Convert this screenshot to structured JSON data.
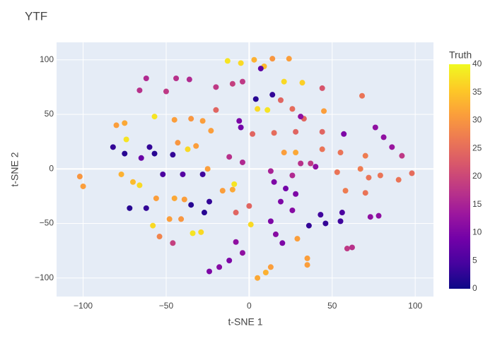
{
  "chart_data": {
    "type": "scatter",
    "title": "YTF",
    "x_label": "t-SNE 1",
    "y_label": "t-SNE 2",
    "colorbar_title": "Truth",
    "x": [
      -13,
      -5,
      3,
      9,
      14,
      24,
      7,
      -62,
      -44,
      -36,
      -66,
      -50,
      -20,
      -10,
      -4,
      21,
      32,
      44,
      4,
      14,
      19,
      26,
      33,
      5,
      11,
      45,
      31,
      68,
      -57,
      -45,
      -35,
      -28,
      -20,
      -80,
      -75,
      -6,
      -5,
      -23,
      2,
      15,
      28,
      44,
      21,
      28,
      44,
      55,
      70,
      57,
      76,
      81,
      86,
      92,
      -82,
      -75,
      -65,
      -60,
      -74,
      -57,
      -46,
      -43,
      -32,
      -37,
      -12,
      -4,
      -102,
      -100,
      -77,
      -70,
      -66,
      -52,
      -40,
      -28,
      -25,
      13,
      26,
      15,
      22,
      28,
      31,
      37,
      40,
      53,
      58,
      70,
      72,
      79,
      90,
      98,
      67,
      -56,
      -45,
      -39,
      -35,
      -24,
      -27,
      -72,
      -62,
      -8,
      0,
      -16,
      -10,
      19,
      26,
      -58,
      -48,
      -41,
      -54,
      -46,
      -34,
      -29,
      36,
      46,
      55,
      43,
      56,
      73,
      78,
      13,
      16,
      20,
      -8,
      -4,
      -24,
      -18,
      -12,
      5,
      10,
      13,
      35,
      35,
      59,
      62,
      1,
      29,
      -9
    ],
    "values": [
      99,
      97,
      100,
      94,
      101,
      101,
      92,
      83,
      83,
      82,
      72,
      71,
      75,
      78,
      80,
      80,
      79,
      74,
      64,
      68,
      63,
      55,
      46,
      55,
      54,
      53,
      48,
      67,
      48,
      45,
      46,
      44,
      54,
      40,
      42,
      44,
      38,
      35,
      32,
      33,
      34,
      34,
      15,
      15,
      18,
      15,
      12,
      32,
      38,
      29,
      20,
      12,
      20,
      14,
      10,
      20,
      27,
      14,
      13,
      24,
      21,
      18,
      11,
      6,
      -7,
      -16,
      -5,
      -12,
      -15,
      -5,
      -5,
      -5,
      0,
      -2,
      -6,
      -12,
      -18,
      -23,
      5,
      5,
      2,
      -3,
      -20,
      -22,
      -8,
      -6,
      -10,
      -4,
      0,
      -27,
      -27,
      -28,
      -33,
      -30,
      -40,
      -36,
      -36,
      -40,
      -34,
      -20,
      -19,
      -30,
      -38,
      -52,
      -46,
      -46,
      -62,
      -68,
      -59,
      -58,
      -52,
      -50,
      -48,
      -42,
      -40,
      -44,
      -43,
      -48,
      -60,
      -68,
      -67,
      -77,
      -94,
      -90,
      -84,
      -100,
      -95,
      -90,
      -82,
      -88,
      -73,
      -72,
      -51,
      -64,
      -14
    ],
    "truth": [
      38,
      37,
      33,
      34,
      30,
      31,
      7,
      16,
      17,
      16,
      17,
      18,
      18,
      19,
      18,
      37,
      36,
      22,
      2,
      3,
      24,
      25,
      24,
      37,
      38,
      31,
      12,
      26,
      38,
      31,
      30,
      31,
      24,
      31,
      32,
      10,
      9,
      31,
      24,
      25,
      24,
      24,
      31,
      32,
      26,
      26,
      27,
      10,
      12,
      12,
      13,
      18,
      3,
      2,
      8,
      3,
      38,
      2,
      3,
      30,
      31,
      37,
      17,
      16,
      30,
      31,
      33,
      34,
      37,
      5,
      6,
      4,
      31,
      15,
      16,
      10,
      9,
      10,
      17,
      18,
      12,
      26,
      27,
      26,
      26,
      26,
      26,
      25,
      27,
      31,
      32,
      31,
      2,
      3,
      2,
      2,
      3,
      24,
      24,
      31,
      32,
      10,
      11,
      37,
      31,
      30,
      28,
      19,
      38,
      37,
      3,
      3,
      4,
      4,
      5,
      12,
      12,
      10,
      11,
      10,
      12,
      12,
      10,
      11,
      10,
      32,
      33,
      31,
      31,
      31,
      18,
      17,
      37,
      31,
      38
    ],
    "xlim": [
      -116,
      111
    ],
    "ylim": [
      -117,
      116
    ],
    "xticks": [
      {
        "value": -100,
        "label": "−100"
      },
      {
        "value": -50,
        "label": "−50"
      },
      0,
      50,
      100
    ],
    "yticks": [
      {
        "value": -100,
        "label": "−100"
      },
      {
        "value": -50,
        "label": "−50"
      },
      0,
      50,
      100
    ],
    "clim": [
      0,
      40
    ],
    "cticks": [
      0,
      5,
      10,
      15,
      20,
      25,
      30,
      35,
      40
    ],
    "colorscale": [
      "#0d0887",
      "#46039f",
      "#7201a8",
      "#9c179e",
      "#bd3786",
      "#d8576b",
      "#ed7953",
      "#fb9f3a",
      "#fdca26",
      "#f0f921"
    ],
    "grid": true
  }
}
